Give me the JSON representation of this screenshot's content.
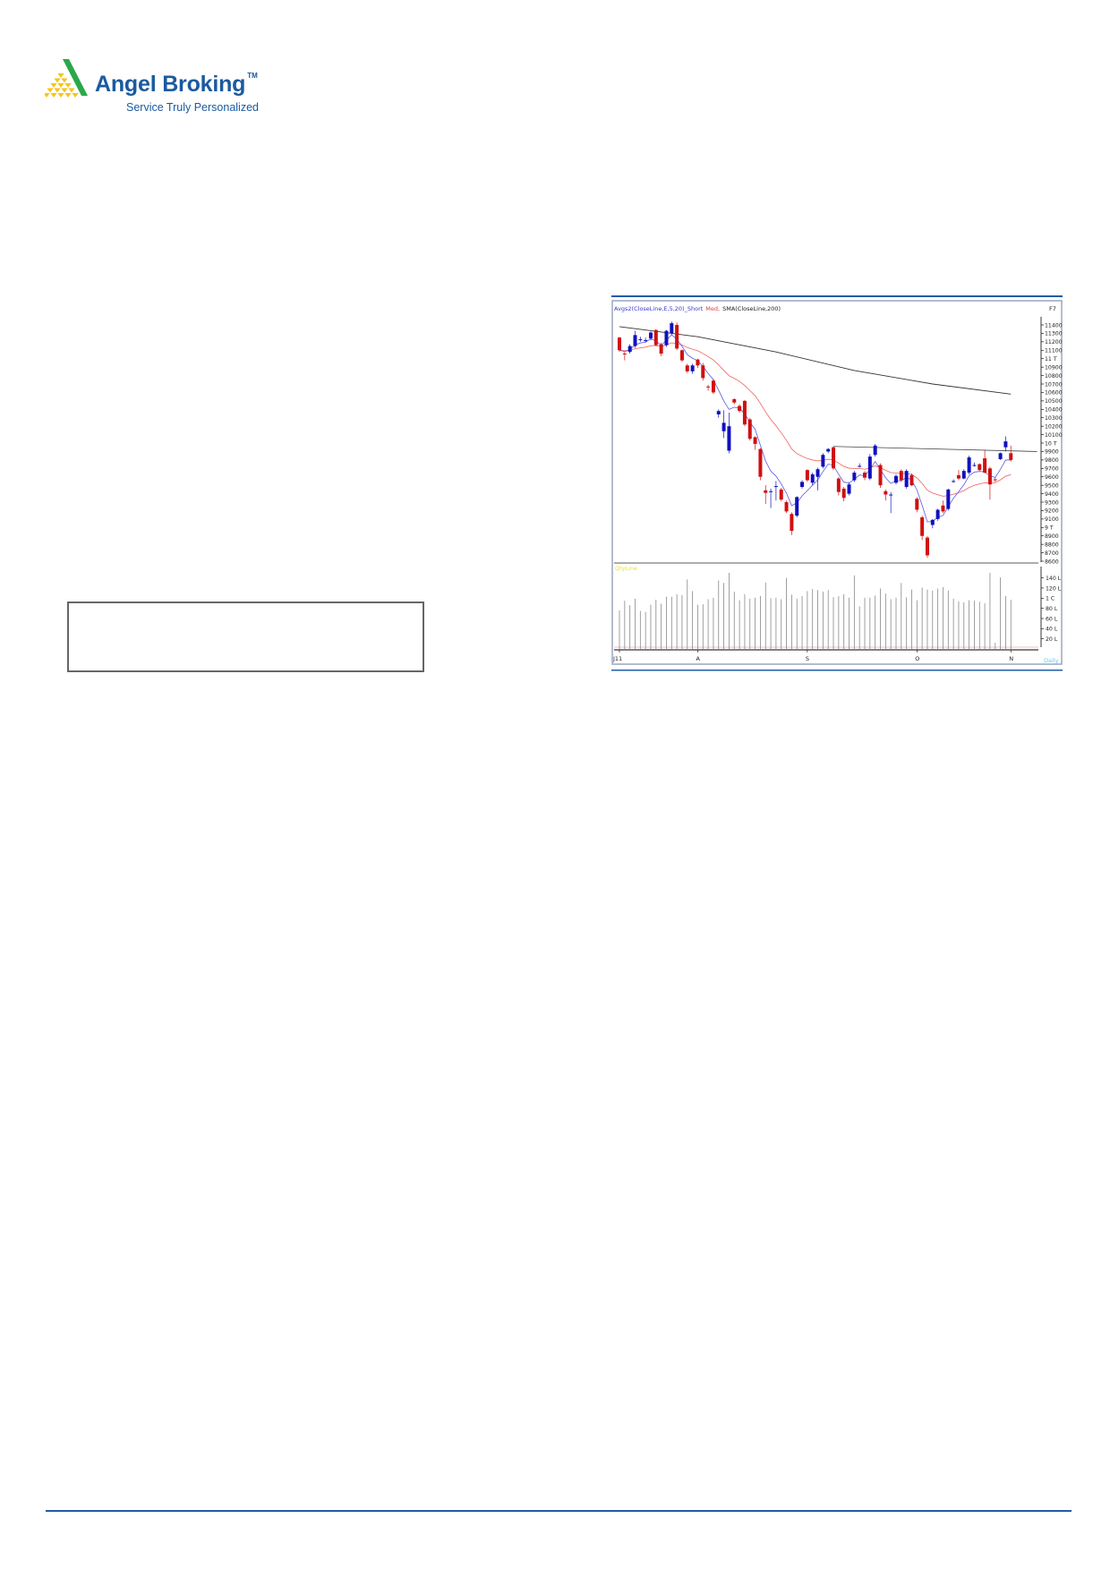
{
  "header": {
    "brand": "Angel Broking",
    "trademark": "TM",
    "tagline": "Service Truly Personalized",
    "brand_color": "#1a5aa0",
    "logo_colors": {
      "triangles": "#f5c518",
      "stripe": "#2aa84a"
    }
  },
  "chart_data": {
    "type": "candlestick",
    "legend": {
      "part1": "Avgs2(CloseLine,E,5,20)_Short",
      "part2": "Med,",
      "part3": "SMA(CloseLine,200)"
    },
    "hotkey": "F7",
    "volume_label": "QtyLine",
    "period_label": "Daily",
    "price_ylim": [
      8600,
      11400
    ],
    "price_ticks": [
      "11400",
      "11300",
      "11200",
      "11100",
      "11 T",
      "10900",
      "10800",
      "10700",
      "10600",
      "10500",
      "10400",
      "10300",
      "10200",
      "10100",
      "10 T",
      "9900",
      "9800",
      "9700",
      "9600",
      "9500",
      "9400",
      "9300",
      "9200",
      "9100",
      "9 T",
      "8900",
      "8800",
      "8700",
      "8600"
    ],
    "volume_ticks": [
      "140 L",
      "120 L",
      "1 C",
      "80 L",
      "60 L",
      "40 L",
      "20 L"
    ],
    "x_labels": [
      {
        "label": "J11",
        "index": 0
      },
      {
        "label": "A",
        "index": 15
      },
      {
        "label": "S",
        "index": 36
      },
      {
        "label": "O",
        "index": 57
      },
      {
        "label": "N",
        "index": 75
      }
    ],
    "candles": [
      [
        11250,
        11260,
        11080,
        11100
      ],
      [
        11060,
        11080,
        10980,
        11050
      ],
      [
        11080,
        11170,
        11060,
        11150
      ],
      [
        11150,
        11330,
        11130,
        11280
      ],
      [
        11230,
        11260,
        11200,
        11230
      ],
      [
        11220,
        11250,
        11190,
        11220
      ],
      [
        11240,
        11320,
        11220,
        11310
      ],
      [
        11340,
        11350,
        11150,
        11160
      ],
      [
        11170,
        11190,
        11030,
        11060
      ],
      [
        11160,
        11340,
        11140,
        11330
      ],
      [
        11300,
        11440,
        11280,
        11420
      ],
      [
        11400,
        11430,
        11100,
        11120
      ],
      [
        11100,
        11110,
        10960,
        10980
      ],
      [
        10920,
        10940,
        10830,
        10850
      ],
      [
        10850,
        10940,
        10820,
        10920
      ],
      [
        10990,
        11000,
        10890,
        10920
      ],
      [
        10920,
        10950,
        10740,
        10770
      ],
      [
        10670,
        10690,
        10620,
        10660
      ],
      [
        10740,
        10760,
        10580,
        10600
      ],
      [
        10340,
        10400,
        10300,
        10380
      ],
      [
        10140,
        10390,
        10060,
        10240
      ],
      [
        9910,
        10360,
        9880,
        10200
      ],
      [
        10520,
        10530,
        10460,
        10480
      ],
      [
        10440,
        10460,
        10360,
        10380
      ],
      [
        10500,
        10510,
        10200,
        10220
      ],
      [
        10280,
        10300,
        10030,
        10050
      ],
      [
        10070,
        10080,
        9920,
        9990
      ],
      [
        9930,
        9940,
        9560,
        9600
      ],
      [
        9440,
        9500,
        9280,
        9410
      ],
      [
        9430,
        9460,
        9230,
        9430
      ],
      [
        9490,
        9550,
        9320,
        9490
      ],
      [
        9450,
        9470,
        9310,
        9330
      ],
      [
        9300,
        9320,
        9170,
        9190
      ],
      [
        9160,
        9180,
        8910,
        8960
      ],
      [
        9140,
        9370,
        9120,
        9360
      ],
      [
        9480,
        9560,
        9460,
        9540
      ],
      [
        9680,
        9690,
        9540,
        9560
      ],
      [
        9530,
        9650,
        9500,
        9630
      ],
      [
        9600,
        9710,
        9440,
        9690
      ],
      [
        9720,
        9880,
        9700,
        9860
      ],
      [
        9900,
        9940,
        9880,
        9930
      ],
      [
        9950,
        9960,
        9680,
        9700
      ],
      [
        9580,
        9600,
        9380,
        9420
      ],
      [
        9460,
        9480,
        9310,
        9350
      ],
      [
        9400,
        9530,
        9380,
        9510
      ],
      [
        9560,
        9670,
        9540,
        9650
      ],
      [
        9730,
        9760,
        9710,
        9730
      ],
      [
        9650,
        9670,
        9560,
        9590
      ],
      [
        9580,
        9870,
        9560,
        9840
      ],
      [
        9860,
        9990,
        9840,
        9970
      ],
      [
        9740,
        9760,
        9470,
        9500
      ],
      [
        9430,
        9450,
        9320,
        9390
      ],
      [
        9390,
        9420,
        9170,
        9390
      ],
      [
        9530,
        9630,
        9510,
        9610
      ],
      [
        9670,
        9690,
        9540,
        9560
      ],
      [
        9480,
        9690,
        9460,
        9670
      ],
      [
        9620,
        9640,
        9490,
        9500
      ],
      [
        9340,
        9360,
        9180,
        9210
      ],
      [
        9120,
        9140,
        8850,
        8900
      ],
      [
        8880,
        8900,
        8640,
        8670
      ],
      [
        9030,
        9100,
        8990,
        9090
      ],
      [
        9100,
        9220,
        9080,
        9210
      ],
      [
        9260,
        9320,
        9170,
        9190
      ],
      [
        9220,
        9460,
        9200,
        9450
      ],
      [
        9550,
        9570,
        9530,
        9550
      ],
      [
        9620,
        9680,
        9560,
        9580
      ],
      [
        9580,
        9690,
        9570,
        9670
      ],
      [
        9650,
        9850,
        9630,
        9830
      ],
      [
        9740,
        9770,
        9720,
        9740
      ],
      [
        9750,
        9760,
        9670,
        9680
      ],
      [
        9820,
        9920,
        9640,
        9650
      ],
      [
        9700,
        9720,
        9330,
        9510
      ],
      [
        9570,
        9590,
        9540,
        9560
      ],
      [
        9810,
        9890,
        9800,
        9880
      ],
      [
        9950,
        10080,
        9900,
        10020
      ],
      [
        9880,
        9970,
        9780,
        9800
      ]
    ],
    "volume_lakhs": [
      76,
      95,
      86,
      99,
      75,
      73,
      87,
      97,
      89,
      103,
      103,
      108,
      106,
      137,
      114,
      87,
      88,
      98,
      101,
      135,
      130,
      150,
      113,
      96,
      108,
      99,
      101,
      104,
      131,
      100,
      101,
      98,
      140,
      107,
      99,
      104,
      114,
      118,
      116,
      113,
      116,
      102,
      104,
      108,
      101,
      145,
      84,
      101,
      101,
      105,
      119,
      109,
      98,
      101,
      130,
      102,
      117,
      96,
      121,
      117,
      115,
      119,
      122,
      115,
      99,
      94,
      92,
      96,
      95,
      93,
      90,
      150,
      12,
      141,
      104,
      97
    ],
    "sma200": [
      {
        "index": 0,
        "value": 11380
      },
      {
        "index": 15,
        "value": 11260
      },
      {
        "index": 30,
        "value": 11080
      },
      {
        "index": 45,
        "value": 10860
      },
      {
        "index": 60,
        "value": 10700
      },
      {
        "index": 75,
        "value": 10580
      }
    ],
    "resistance_line": [
      {
        "index": 41,
        "value": 9960
      },
      {
        "index": 80,
        "value": 9900
      }
    ],
    "colors": {
      "up": "#1010c0",
      "down": "#d01010",
      "ema_short": "#5a5ae0",
      "ema_medium": "#f06060",
      "sma": "#333333",
      "volume": "#888888",
      "frame_rule": "#1f5ca8"
    }
  }
}
